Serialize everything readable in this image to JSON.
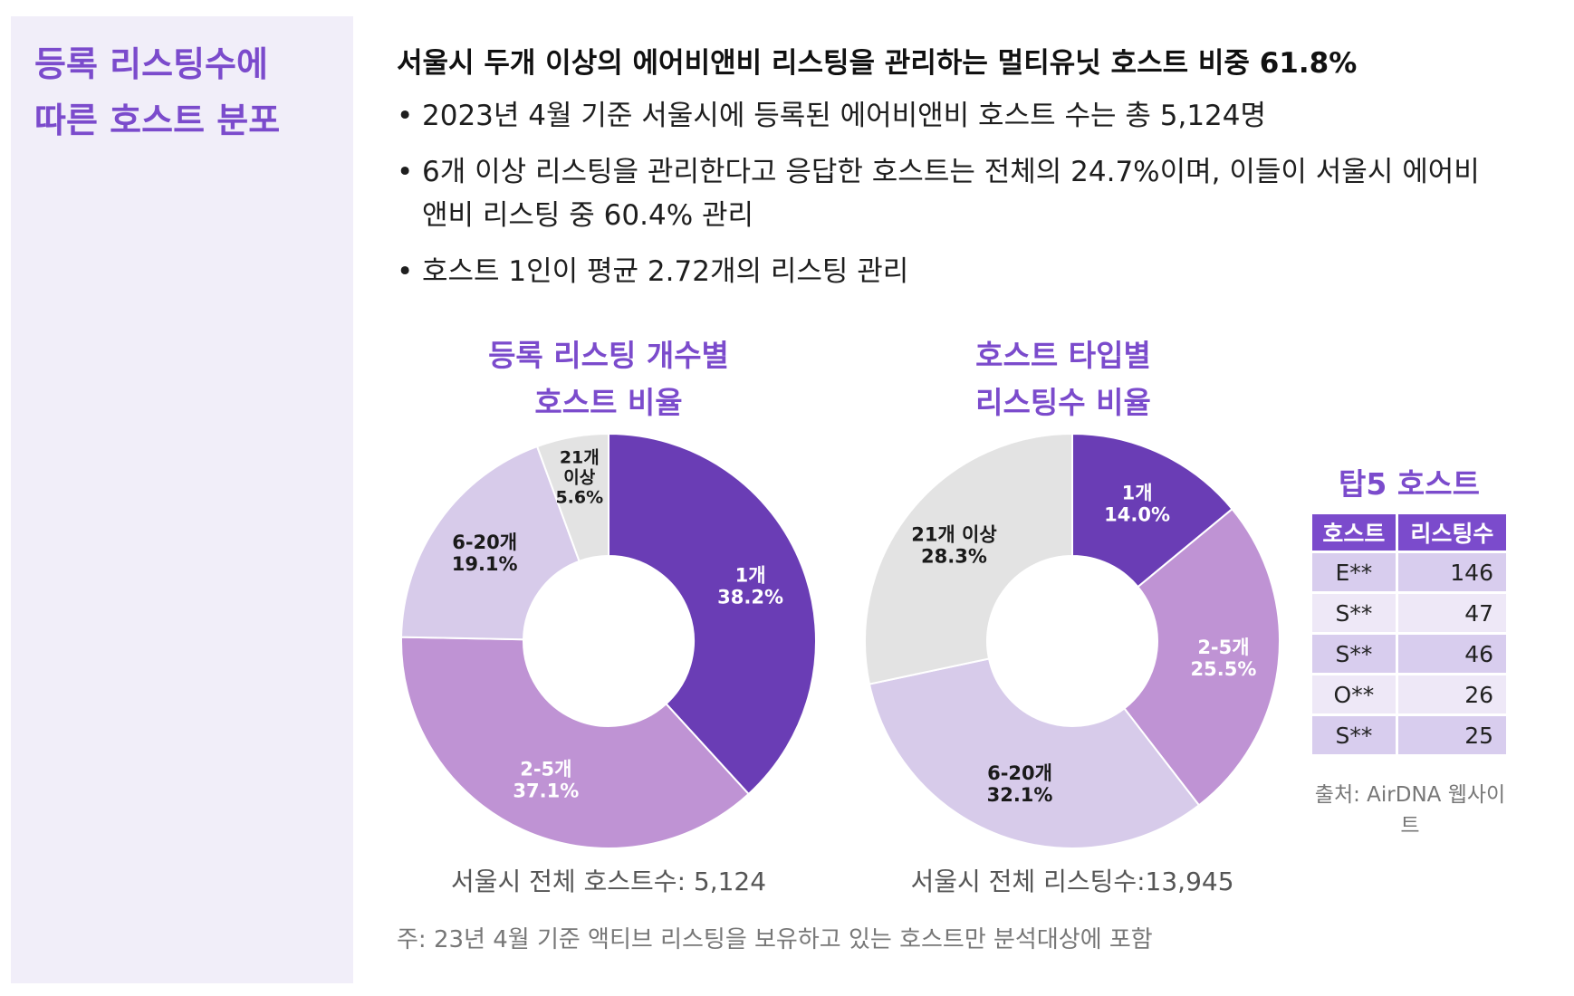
{
  "sidebar": {
    "title_line1": "등록 리스팅수에",
    "title_line2": "따른 호스트 분포"
  },
  "headline": "서울시 두개 이상의 에어비앤비 리스팅을 관리하는 멀티유닛 호스트 비중 61.8%",
  "bullets": [
    "2023년 4월 기준 서울시에 등록된 에어비앤비 호스트 수는 총 5,124명",
    "6개 이상 리스팅을 관리한다고 응답한 호스트는 전체의 24.7%이며, 이들이 서울시 에어비앤비 리스팅 중 60.4% 관리",
    "호스트 1인이 평균 2.72개의 리스팅 관리"
  ],
  "chart_data": [
    {
      "type": "pie",
      "title_line1": "등록 리스팅 개수별",
      "title_line2": "호스트 비율",
      "categories": [
        "1개",
        "2-5개",
        "6-20개",
        "21개 이상"
      ],
      "values": [
        38.2,
        37.1,
        19.1,
        5.6
      ],
      "value_labels": [
        "38.2%",
        "37.1%",
        "19.1%",
        "5.6%"
      ],
      "slice_labels": [
        [
          "1개"
        ],
        [
          "2-5개"
        ],
        [
          "6-20개"
        ],
        [
          "21개",
          "이상"
        ]
      ],
      "colors": [
        "#6a3db5",
        "#bf93d4",
        "#d7cbea",
        "#e3e3e3"
      ],
      "text_colors": [
        "#ffffff",
        "#ffffff",
        "#1a1a1a",
        "#1a1a1a"
      ],
      "caption": "서울시 전체 호스트수: 5,124"
    },
    {
      "type": "pie",
      "title_line1": "호스트 타입별",
      "title_line2": "리스팅수 비율",
      "categories": [
        "1개",
        "2-5개",
        "6-20개",
        "21개 이상"
      ],
      "values": [
        14.0,
        25.5,
        32.1,
        28.3
      ],
      "value_labels": [
        "14.0%",
        "25.5%",
        "32.1%",
        "28.3%"
      ],
      "slice_labels": [
        [
          "1개"
        ],
        [
          "2-5개"
        ],
        [
          "6-20개"
        ],
        [
          "21개 이상"
        ]
      ],
      "colors": [
        "#6a3db5",
        "#bf93d4",
        "#d7cbea",
        "#e3e3e3"
      ],
      "text_colors": [
        "#ffffff",
        "#ffffff",
        "#1a1a1a",
        "#1a1a1a"
      ],
      "caption": "서울시 전체 리스팅수:13,945"
    }
  ],
  "top5": {
    "title": "탑5 호스트",
    "headers": [
      "호스트",
      "리스팅수"
    ],
    "rows": [
      {
        "host": "E**",
        "count": "146"
      },
      {
        "host": "S**",
        "count": "47"
      },
      {
        "host": "S**",
        "count": "46"
      },
      {
        "host": "O**",
        "count": "26"
      },
      {
        "host": "S**",
        "count": "25"
      }
    ],
    "source": "출처: AirDNA 웹사이트"
  },
  "note": "주: 23년 4월 기준 액티브 리스팅을  보유하고 있는 호스트만 분석대상에 포함"
}
